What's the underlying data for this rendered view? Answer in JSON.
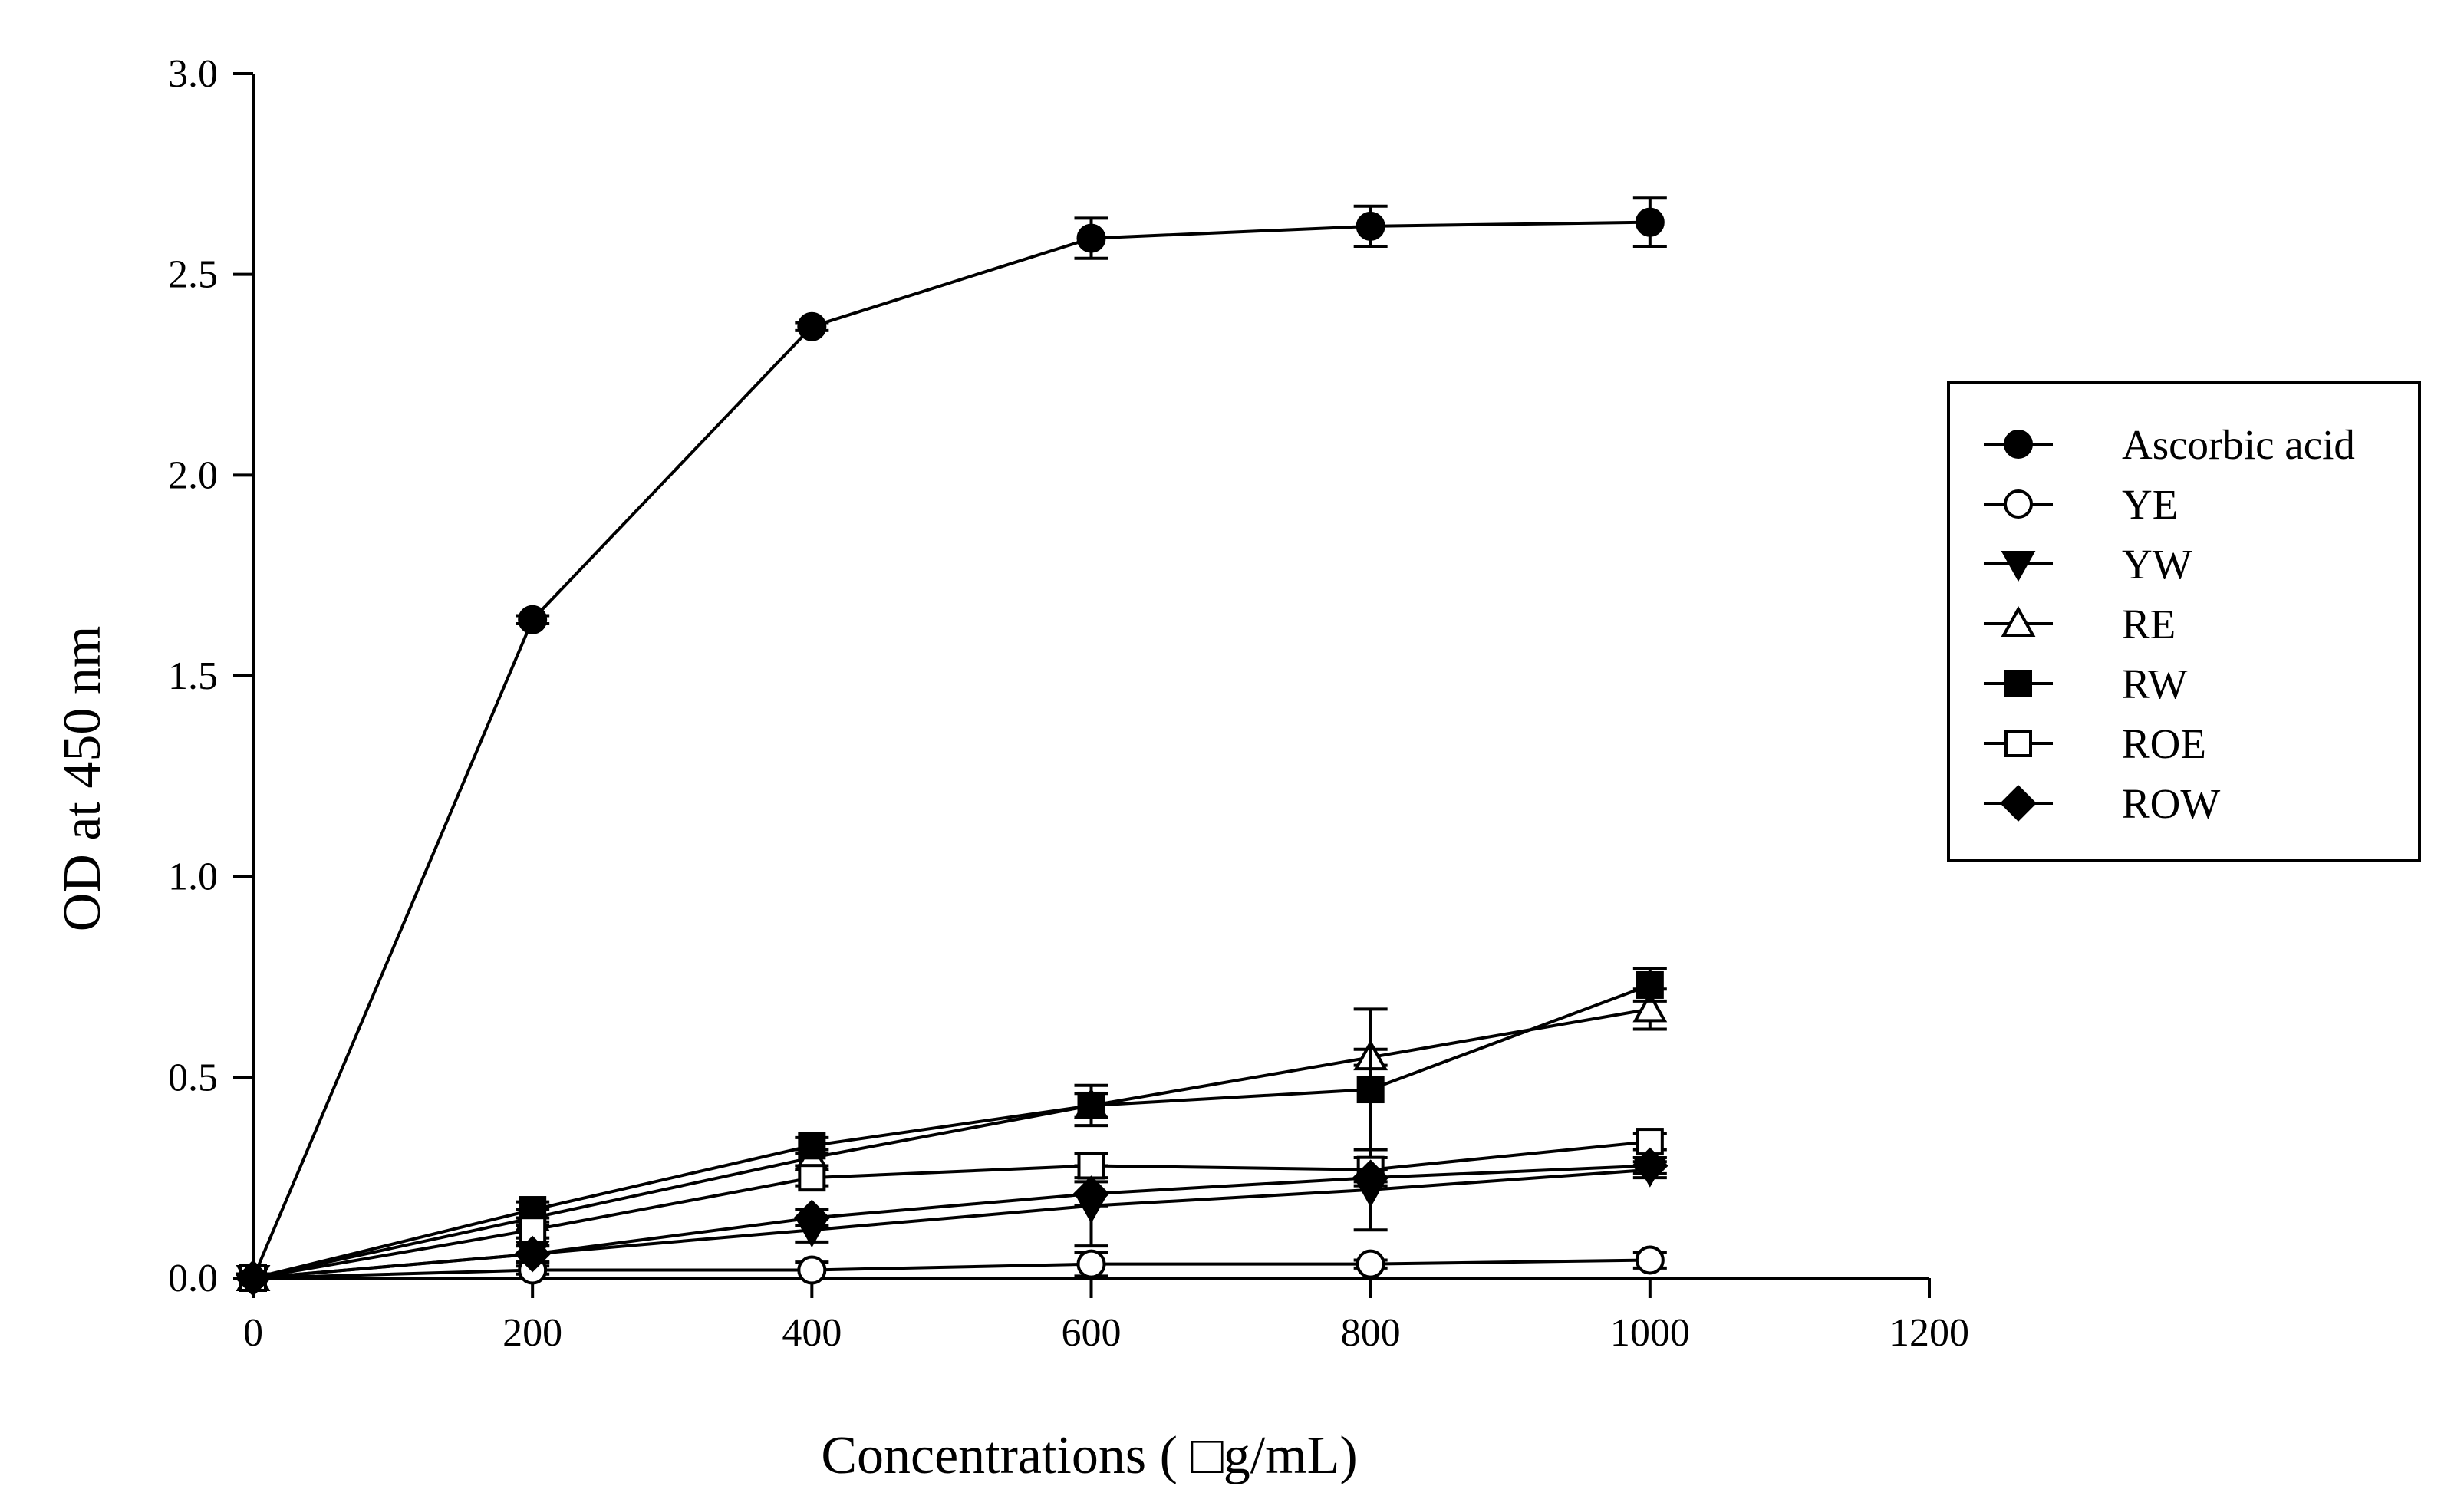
{
  "chart_data": {
    "type": "line",
    "title": "",
    "xlabel": "Concentrations ( □g/mL)",
    "ylabel": "OD at 450 nm",
    "xlim": [
      0,
      1200
    ],
    "ylim": [
      0,
      3.0
    ],
    "xticks": [
      0,
      200,
      400,
      600,
      800,
      1000,
      1200
    ],
    "yticks": [
      0.0,
      0.5,
      1.0,
      1.5,
      2.0,
      2.5,
      3.0
    ],
    "x_tick_labels": [
      "0",
      "200",
      "400",
      "600",
      "800",
      "1000",
      "1200"
    ],
    "y_tick_labels": [
      "0.0",
      "0.5",
      "1.0",
      "1.5",
      "2.0",
      "2.5",
      "3.0"
    ],
    "grid": false,
    "legend_position": "right",
    "x": [
      0,
      200,
      400,
      600,
      800,
      1000
    ],
    "series": [
      {
        "name": "Ascorbic acid",
        "marker": "circle-filled",
        "values": [
          0.0,
          1.64,
          2.37,
          2.59,
          2.62,
          2.63
        ],
        "errors": [
          0.01,
          0.01,
          0.01,
          0.05,
          0.05,
          0.06
        ]
      },
      {
        "name": "YE",
        "marker": "circle-open",
        "values": [
          0.0,
          0.02,
          0.02,
          0.035,
          0.035,
          0.045
        ],
        "errors": [
          0.01,
          0.01,
          0.02,
          0.03,
          0.01,
          0.02
        ]
      },
      {
        "name": "YW",
        "marker": "triangle-down-filled",
        "values": [
          0.0,
          0.06,
          0.12,
          0.18,
          0.22,
          0.27
        ],
        "errors": [
          0.01,
          0.02,
          0.03,
          0.1,
          0.1,
          0.02
        ]
      },
      {
        "name": "RE",
        "marker": "triangle-up-open",
        "values": [
          0.0,
          0.15,
          0.3,
          0.43,
          0.55,
          0.67
        ],
        "errors": [
          0.01,
          0.02,
          0.02,
          0.05,
          0.02,
          0.05
        ]
      },
      {
        "name": "RW",
        "marker": "square-filled",
        "values": [
          0.0,
          0.17,
          0.33,
          0.43,
          0.47,
          0.73
        ],
        "errors": [
          0.01,
          0.02,
          0.02,
          0.03,
          0.2,
          0.04
        ]
      },
      {
        "name": "ROE",
        "marker": "square-open",
        "values": [
          0.0,
          0.12,
          0.25,
          0.28,
          0.27,
          0.34
        ],
        "errors": [
          0.01,
          0.02,
          0.02,
          0.03,
          0.03,
          0.02
        ]
      },
      {
        "name": "ROW",
        "marker": "diamond-filled",
        "values": [
          0.0,
          0.06,
          0.15,
          0.21,
          0.25,
          0.28
        ],
        "errors": [
          0.01,
          0.02,
          0.02,
          0.03,
          0.02,
          0.02
        ]
      }
    ]
  }
}
